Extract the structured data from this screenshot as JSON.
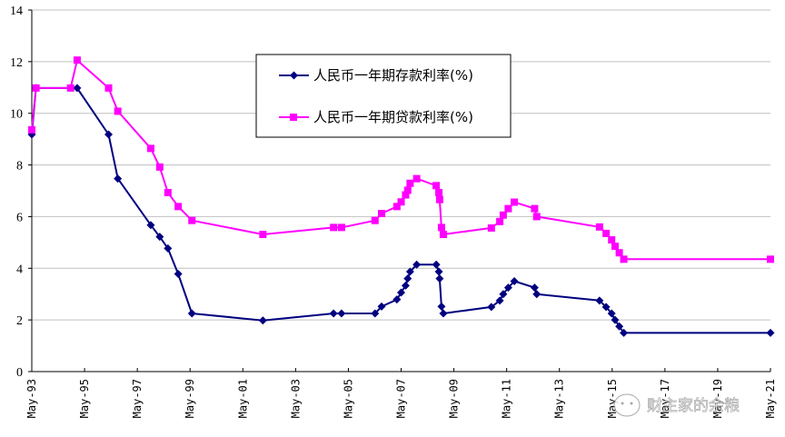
{
  "chart_data": {
    "type": "line",
    "title": "",
    "xlabel": "",
    "ylabel": "",
    "ylim": [
      0,
      14
    ],
    "yticks": [
      0,
      2,
      4,
      6,
      8,
      10,
      12,
      14
    ],
    "xlim": [
      "May-93",
      "May-21"
    ],
    "xticks": [
      "May-93",
      "May-95",
      "May-97",
      "May-99",
      "May-01",
      "May-03",
      "May-05",
      "May-07",
      "May-09",
      "May-11",
      "May-13",
      "May-15",
      "May-17",
      "May-19",
      "May-21"
    ],
    "grid": {
      "horizontal": true,
      "vertical": false
    },
    "legend_position": "upper-center (inside plot)",
    "series": [
      {
        "name": "人民币一年期存款利率(%)",
        "color": "#000080",
        "marker": "diamond",
        "points": [
          {
            "x": 1993.38,
            "y": 9.18
          },
          {
            "x": 1993.54,
            "y": 10.98
          },
          {
            "x": 1995.1,
            "y": 10.98
          },
          {
            "x": 1996.29,
            "y": 9.18
          },
          {
            "x": 1996.64,
            "y": 7.47
          },
          {
            "x": 1997.89,
            "y": 5.67
          },
          {
            "x": 1998.23,
            "y": 5.22
          },
          {
            "x": 1998.54,
            "y": 4.77
          },
          {
            "x": 1998.93,
            "y": 3.78
          },
          {
            "x": 1999.45,
            "y": 2.25
          },
          {
            "x": 2002.14,
            "y": 1.98
          },
          {
            "x": 2004.82,
            "y": 2.25
          },
          {
            "x": 2005.12,
            "y": 2.25
          },
          {
            "x": 2006.39,
            "y": 2.25
          },
          {
            "x": 2006.64,
            "y": 2.52
          },
          {
            "x": 2007.22,
            "y": 2.79
          },
          {
            "x": 2007.38,
            "y": 3.06
          },
          {
            "x": 2007.55,
            "y": 3.33
          },
          {
            "x": 2007.63,
            "y": 3.6
          },
          {
            "x": 2007.72,
            "y": 3.87
          },
          {
            "x": 2007.97,
            "y": 4.14
          },
          {
            "x": 2008.71,
            "y": 4.14
          },
          {
            "x": 2008.81,
            "y": 3.87
          },
          {
            "x": 2008.84,
            "y": 3.6
          },
          {
            "x": 2008.91,
            "y": 2.52
          },
          {
            "x": 2008.98,
            "y": 2.25
          },
          {
            "x": 2010.8,
            "y": 2.5
          },
          {
            "x": 2011.12,
            "y": 2.75
          },
          {
            "x": 2011.25,
            "y": 3.0
          },
          {
            "x": 2011.44,
            "y": 3.25
          },
          {
            "x": 2011.67,
            "y": 3.5
          },
          {
            "x": 2012.44,
            "y": 3.25
          },
          {
            "x": 2012.52,
            "y": 3.0
          },
          {
            "x": 2014.9,
            "y": 2.75
          },
          {
            "x": 2015.15,
            "y": 2.5
          },
          {
            "x": 2015.36,
            "y": 2.25
          },
          {
            "x": 2015.49,
            "y": 2.0
          },
          {
            "x": 2015.65,
            "y": 1.75
          },
          {
            "x": 2015.82,
            "y": 1.5
          },
          {
            "x": 2021.38,
            "y": 1.5
          }
        ]
      },
      {
        "name": "人民币一年期贷款利率(%)",
        "color": "#FF00FF",
        "marker": "square",
        "points": [
          {
            "x": 1993.38,
            "y": 9.36
          },
          {
            "x": 1993.54,
            "y": 10.98
          },
          {
            "x": 1994.85,
            "y": 10.98
          },
          {
            "x": 1995.1,
            "y": 12.06
          },
          {
            "x": 1996.29,
            "y": 10.98
          },
          {
            "x": 1996.64,
            "y": 10.08
          },
          {
            "x": 1997.89,
            "y": 8.64
          },
          {
            "x": 1998.23,
            "y": 7.92
          },
          {
            "x": 1998.54,
            "y": 6.93
          },
          {
            "x": 1998.93,
            "y": 6.39
          },
          {
            "x": 1999.45,
            "y": 5.85
          },
          {
            "x": 2002.14,
            "y": 5.31
          },
          {
            "x": 2004.82,
            "y": 5.58
          },
          {
            "x": 2005.12,
            "y": 5.58
          },
          {
            "x": 2006.39,
            "y": 5.85
          },
          {
            "x": 2006.64,
            "y": 6.12
          },
          {
            "x": 2007.22,
            "y": 6.39
          },
          {
            "x": 2007.38,
            "y": 6.57
          },
          {
            "x": 2007.55,
            "y": 6.84
          },
          {
            "x": 2007.63,
            "y": 7.02
          },
          {
            "x": 2007.72,
            "y": 7.29
          },
          {
            "x": 2007.97,
            "y": 7.47
          },
          {
            "x": 2008.71,
            "y": 7.2
          },
          {
            "x": 2008.81,
            "y": 6.93
          },
          {
            "x": 2008.84,
            "y": 6.66
          },
          {
            "x": 2008.91,
            "y": 5.58
          },
          {
            "x": 2008.98,
            "y": 5.31
          },
          {
            "x": 2010.8,
            "y": 5.56
          },
          {
            "x": 2011.12,
            "y": 5.81
          },
          {
            "x": 2011.25,
            "y": 6.06
          },
          {
            "x": 2011.44,
            "y": 6.31
          },
          {
            "x": 2011.67,
            "y": 6.56
          },
          {
            "x": 2012.44,
            "y": 6.31
          },
          {
            "x": 2012.52,
            "y": 6.0
          },
          {
            "x": 2014.9,
            "y": 5.6
          },
          {
            "x": 2015.15,
            "y": 5.35
          },
          {
            "x": 2015.36,
            "y": 5.1
          },
          {
            "x": 2015.49,
            "y": 4.85
          },
          {
            "x": 2015.65,
            "y": 4.6
          },
          {
            "x": 2015.82,
            "y": 4.35
          },
          {
            "x": 2021.38,
            "y": 4.35
          }
        ]
      }
    ],
    "annotations": [
      "财主家的余粮"
    ]
  },
  "legend": {
    "items": [
      {
        "label": "人民币一年期存款利率(%)",
        "color": "#000080",
        "marker": "diamond"
      },
      {
        "label": "人民币一年期贷款利率(%)",
        "color": "#FF00FF",
        "marker": "square"
      }
    ]
  },
  "watermark": {
    "text": "财主家的余粮",
    "icon": "wechat-icon"
  },
  "colors": {
    "deposit": "#000080",
    "loan": "#FF00FF",
    "grid": "#C0C0C0",
    "axis": "#000000"
  }
}
